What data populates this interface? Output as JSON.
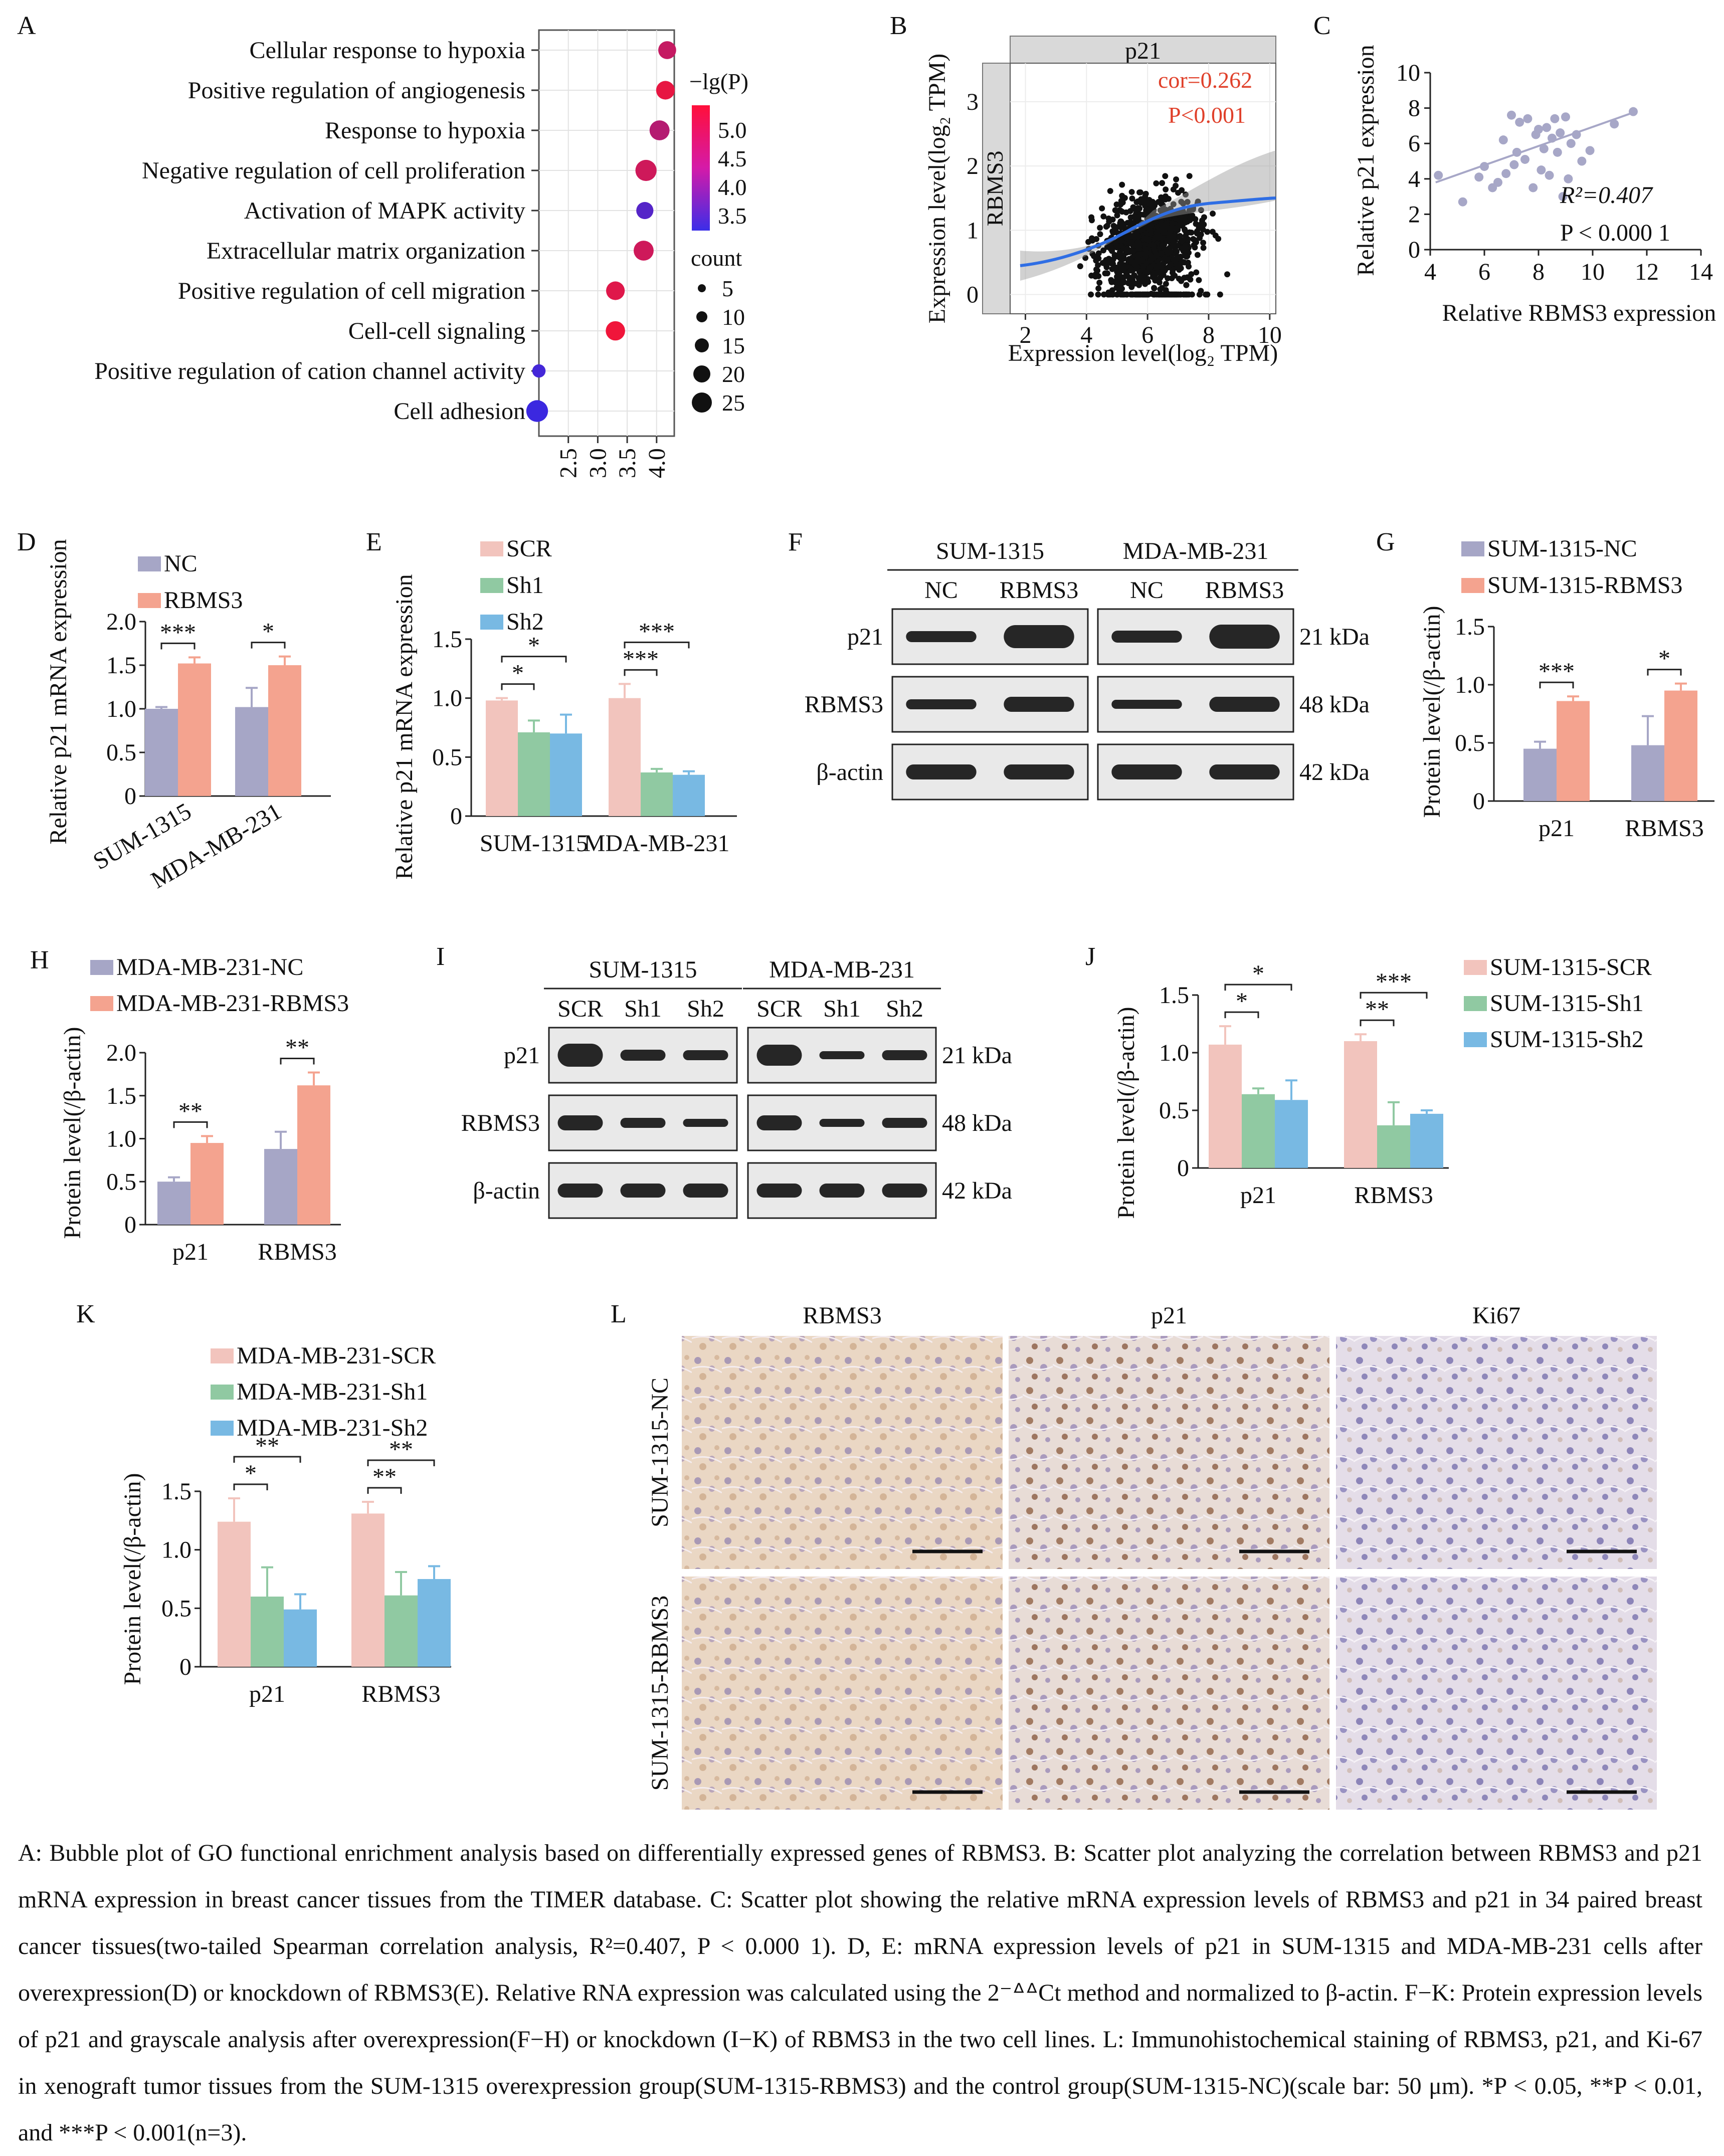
{
  "colors": {
    "nc": "#a6a6c6",
    "over": "#f4a38f",
    "scr": "#f2c4bd",
    "sh1": "#90c9a2",
    "sh2": "#78b9e3",
    "gray_line": "#a7a7c7",
    "axis": "#222222",
    "red_text": "#e0402a",
    "bubble_hi": "#f0153a",
    "bubble_lo": "#3d27e0"
  },
  "panels": {
    "A": {
      "label": "A",
      "legend_title": "−lg(P)",
      "legend_ticks": [
        "5.0",
        "4.5",
        "4.0",
        "3.5"
      ],
      "count_title": "count",
      "count_items": [
        "5",
        "10",
        "15",
        "20",
        "25"
      ]
    },
    "B": {
      "label": "B",
      "strip_top": "p21",
      "strip_side": "RBMS3",
      "cor": "cor=0.262",
      "p": "P<0.001",
      "xlabel": "Expression level(log₂ TPM)",
      "ylabel": "Expression level(log₂ TPM)"
    },
    "C": {
      "label": "C",
      "xlabel": "Relative RBMS3 expression",
      "ylabel": "Relative p21 expression",
      "r2": "R²=0.407",
      "p": "P < 0.000 1"
    },
    "D": {
      "label": "D",
      "ylabel": "Relative p21 mRNA expression",
      "legend": [
        "NC",
        "RBMS3"
      ]
    },
    "E": {
      "label": "E",
      "ylabel": "Relative p21 mRNA expression",
      "legend": [
        "SCR",
        "Sh1",
        "Sh2"
      ]
    },
    "F": {
      "label": "F",
      "group1": "SUM-1315",
      "group2": "MDA-MB-231",
      "lanes": [
        "NC",
        "RBMS3",
        "NC",
        "RBMS3"
      ],
      "rows": [
        "p21",
        "RBMS3",
        "β-actin"
      ],
      "kda": [
        "21 kDa",
        "48 kDa",
        "42 kDa"
      ]
    },
    "G": {
      "label": "G",
      "ylabel": "Protein level(/β-actin)",
      "legend": [
        "SUM-1315-NC",
        "SUM-1315-RBMS3"
      ]
    },
    "H": {
      "label": "H",
      "ylabel": "Protein level(/β-actin)",
      "legend": [
        "MDA-MB-231-NC",
        "MDA-MB-231-RBMS3"
      ]
    },
    "I": {
      "label": "I",
      "group1": "SUM-1315",
      "group2": "MDA-MB-231",
      "lanes": [
        "SCR",
        "Sh1",
        "Sh2",
        "SCR",
        "Sh1",
        "Sh2"
      ],
      "rows": [
        "p21",
        "RBMS3",
        "β-actin"
      ],
      "kda": [
        "21 kDa",
        "48 kDa",
        "42 kDa"
      ]
    },
    "J": {
      "label": "J",
      "ylabel": "Protein level(/β-actin)",
      "legend": [
        "SUM-1315-SCR",
        "SUM-1315-Sh1",
        "SUM-1315-Sh2"
      ]
    },
    "K": {
      "label": "K",
      "ylabel": "Protein level(/β-actin)",
      "legend": [
        "MDA-MB-231-SCR",
        "MDA-MB-231-Sh1",
        "MDA-MB-231-Sh2"
      ]
    },
    "L": {
      "label": "L",
      "cols": [
        "RBMS3",
        "p21",
        "Ki67"
      ],
      "rows": [
        "SUM-1315-NC",
        "SUM-1315-RBMS3"
      ]
    }
  },
  "chart_data": [
    {
      "panel": "A",
      "type": "scatter",
      "terms": [
        "Cellular response to hypoxia",
        "Positive regulation of angiogenesis",
        "Response to hypoxia",
        "Negative regulation of cell proliferation",
        "Activation of MAPK activity",
        "Extracellular matrix organization",
        "Positive regulation of cell migration",
        "Cell-cell signaling",
        "Positive regulation of cation channel activity",
        "Cell adhesion"
      ],
      "x": [
        4.18,
        4.15,
        4.05,
        3.82,
        3.8,
        3.78,
        3.3,
        3.3,
        2.0,
        1.97
      ],
      "neg_log_p": [
        4.8,
        5.2,
        4.6,
        4.9,
        3.5,
        4.9,
        5.1,
        5.3,
        3.3,
        3.2
      ],
      "count": [
        8,
        9,
        11,
        13,
        7,
        11,
        9,
        10,
        3,
        14
      ],
      "xticks": [
        "2.5",
        "3.0",
        "3.5",
        "4.0"
      ],
      "xlim": [
        2.0,
        4.3
      ]
    },
    {
      "panel": "B",
      "type": "scatter",
      "xticks": [
        "2",
        "4",
        "6",
        "8",
        "10"
      ],
      "yticks": [
        "0",
        "1",
        "2",
        "3"
      ],
      "xlim": [
        1.5,
        10.2
      ],
      "ylim": [
        -0.3,
        3.6
      ]
    },
    {
      "panel": "C",
      "type": "scatter",
      "x": [
        4.3,
        5.2,
        5.8,
        6.0,
        6.3,
        6.5,
        6.7,
        6.8,
        7.0,
        7.1,
        7.2,
        7.3,
        7.5,
        7.6,
        7.8,
        7.9,
        8.0,
        8.1,
        8.2,
        8.3,
        8.4,
        8.5,
        8.6,
        8.7,
        8.8,
        8.9,
        9.0,
        9.1,
        9.2,
        9.4,
        9.6,
        9.9,
        10.8,
        11.5
      ],
      "y": [
        4.2,
        2.7,
        4.1,
        4.7,
        3.5,
        3.8,
        6.2,
        4.3,
        7.6,
        4.8,
        5.5,
        7.2,
        5.1,
        7.4,
        3.5,
        6.5,
        6.8,
        4.5,
        5.7,
        6.9,
        4.2,
        6.3,
        7.4,
        5.5,
        6.6,
        3.0,
        7.5,
        4.0,
        6.0,
        6.5,
        5.0,
        5.6,
        7.1,
        7.8
      ],
      "xticks": [
        "4",
        "6",
        "8",
        "10",
        "12",
        "14"
      ],
      "yticks": [
        "0",
        "2",
        "4",
        "6",
        "8",
        "10"
      ],
      "xlim": [
        4,
        14
      ],
      "ylim": [
        0,
        10
      ]
    },
    {
      "panel": "D",
      "type": "bar",
      "categories": [
        "SUM-1315",
        "MDA-MB-231"
      ],
      "series": [
        {
          "name": "NC",
          "values": [
            1.0,
            1.02
          ],
          "err": [
            0.02,
            0.22
          ]
        },
        {
          "name": "RBMS3",
          "values": [
            1.52,
            1.5
          ],
          "err": [
            0.07,
            0.1
          ]
        }
      ],
      "sig": [
        "***",
        "*"
      ],
      "yticks": [
        "0",
        "0.5",
        "1.0",
        "1.5",
        "2.0"
      ],
      "ylim": [
        0,
        2.0
      ]
    },
    {
      "panel": "E",
      "type": "bar",
      "categories": [
        "SUM-1315",
        "MDA-MB-231"
      ],
      "series": [
        {
          "name": "SCR",
          "values": [
            0.98,
            1.0
          ],
          "err": [
            0.02,
            0.12
          ]
        },
        {
          "name": "Sh1",
          "values": [
            0.71,
            0.37
          ],
          "err": [
            0.1,
            0.03
          ]
        },
        {
          "name": "Sh2",
          "values": [
            0.7,
            0.35
          ],
          "err": [
            0.16,
            0.03
          ]
        }
      ],
      "sig": [
        [
          "*",
          "*"
        ],
        [
          "***",
          "***"
        ]
      ],
      "yticks": [
        "0",
        "0.5",
        "1.0",
        "1.5"
      ],
      "ylim": [
        0,
        1.5
      ]
    },
    {
      "panel": "G",
      "type": "bar",
      "categories": [
        "p21",
        "RBMS3"
      ],
      "series": [
        {
          "name": "SUM-1315-NC",
          "values": [
            0.45,
            0.48
          ],
          "err": [
            0.06,
            0.25
          ]
        },
        {
          "name": "SUM-1315-RBMS3",
          "values": [
            0.86,
            0.95
          ],
          "err": [
            0.04,
            0.06
          ]
        }
      ],
      "sig": [
        "***",
        "*"
      ],
      "yticks": [
        "0",
        "0.5",
        "1.0",
        "1.5"
      ],
      "ylim": [
        0,
        1.5
      ]
    },
    {
      "panel": "H",
      "type": "bar",
      "categories": [
        "p21",
        "RBMS3"
      ],
      "series": [
        {
          "name": "MDA-MB-231-NC",
          "values": [
            0.5,
            0.88
          ],
          "err": [
            0.05,
            0.2
          ]
        },
        {
          "name": "MDA-MB-231-RBMS3",
          "values": [
            0.95,
            1.62
          ],
          "err": [
            0.08,
            0.15
          ]
        }
      ],
      "sig": [
        "**",
        "**"
      ],
      "yticks": [
        "0",
        "0.5",
        "1.0",
        "1.5",
        "2.0"
      ],
      "ylim": [
        0,
        2.0
      ]
    },
    {
      "panel": "J",
      "type": "bar",
      "categories": [
        "p21",
        "RBMS3"
      ],
      "series": [
        {
          "name": "SUM-1315-SCR",
          "values": [
            1.07,
            1.1
          ],
          "err": [
            0.16,
            0.06
          ]
        },
        {
          "name": "SUM-1315-Sh1",
          "values": [
            0.64,
            0.37
          ],
          "err": [
            0.05,
            0.2
          ]
        },
        {
          "name": "SUM-1315-Sh2",
          "values": [
            0.59,
            0.47
          ],
          "err": [
            0.17,
            0.03
          ]
        }
      ],
      "sig": [
        [
          "*",
          "*"
        ],
        [
          "**",
          "***"
        ]
      ],
      "yticks": [
        "0",
        "0.5",
        "1.0",
        "1.5"
      ],
      "ylim": [
        0,
        1.5
      ]
    },
    {
      "panel": "K",
      "type": "bar",
      "categories": [
        "p21",
        "RBMS3"
      ],
      "series": [
        {
          "name": "MDA-MB-231-SCR",
          "values": [
            1.24,
            1.31
          ],
          "err": [
            0.2,
            0.1
          ]
        },
        {
          "name": "MDA-MB-231-Sh1",
          "values": [
            0.6,
            0.61
          ],
          "err": [
            0.25,
            0.2
          ]
        },
        {
          "name": "MDA-MB-231-Sh2",
          "values": [
            0.49,
            0.75
          ],
          "err": [
            0.13,
            0.11
          ]
        }
      ],
      "sig": [
        [
          "*",
          "**"
        ],
        [
          "**",
          "**"
        ]
      ],
      "yticks": [
        "0",
        "0.5",
        "1.0",
        "1.5"
      ],
      "ylim": [
        0,
        1.5
      ]
    }
  ],
  "caption": {
    "p1": "A: Bubble plot of GO functional enrichment analysis based on differentially expressed genes of RBMS3. B: Scatter plot analyzing the correlation between RBMS3 and p21 mRNA expression in breast cancer tissues from the TIMER database. C: Scatter plot showing the relative mRNA expression levels of RBMS3 and p21 in 34 paired breast cancer tissues(two-tailed Spearman correlation analysis, R²=0.407, P < 0.000 1). D, E: mRNA expression levels of p21 in SUM-1315 and MDA-MB-231 cells after overexpression(D) or knockdown of RBMS3(E). Relative RNA expression was calculated using the 2⁻ᐞᐞCt method and normalized to β-actin. F−K: Protein expression levels of p21 and grayscale analysis after overexpression(F−H) or knockdown (I−K) of RBMS3 in the two cell lines. L: Immunohistochemical staining of RBMS3, p21, and Ki-67 in xenograft tumor tissues from the SUM-1315 overexpression group(SUM-1315-RBMS3) and the control group(SUM-1315-NC)(scale bar: 50 μm). *P < 0.05, **P < 0.01, and ***P < 0.001(n=3)."
  }
}
